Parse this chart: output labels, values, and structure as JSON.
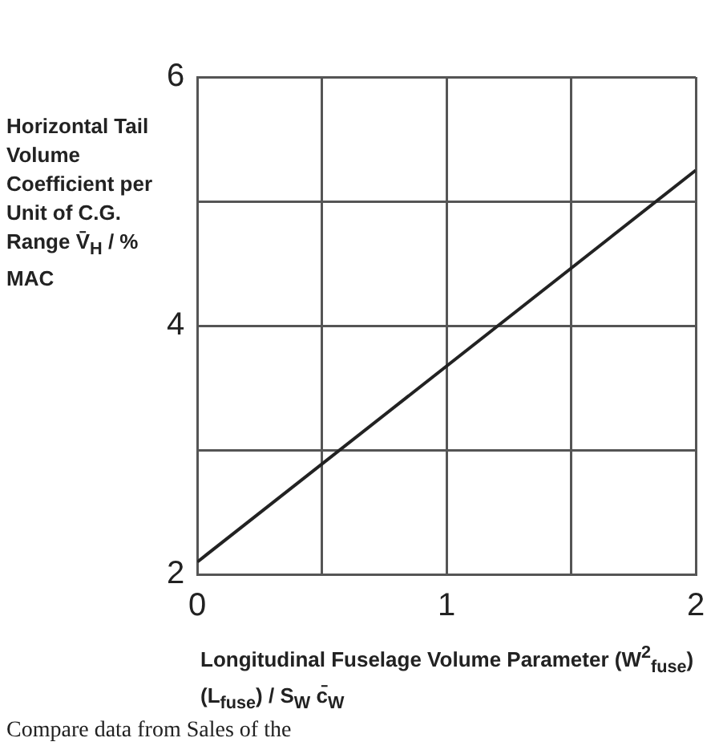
{
  "chart_data": {
    "type": "line",
    "xlabel": "Longitudinal Fuselage Volume Parameter (W$^{2}$$_{fuse}$)(L$_{fuse}$) / S$_{W}$ c̄$_{W}$",
    "ylabel": "Horizontal Tail Volume Coefficient per Unit of C.G. Range V̄$_{H}$ / % MAC",
    "x": [
      0,
      2
    ],
    "series": [
      {
        "color": "#222222",
        "values": [
          2.1,
          5.25
        ]
      }
    ],
    "xlim": [
      0,
      2
    ],
    "xticks": [
      0,
      {
        "value": 0.5,
        "label": null
      },
      1,
      {
        "value": 1.5,
        "label": null
      },
      2
    ],
    "ylim": [
      2,
      6
    ],
    "yticks": [
      2,
      {
        "value": 3,
        "label": null
      },
      4,
      {
        "value": 5,
        "label": null
      },
      6
    ],
    "grid": true,
    "legend": false,
    "marker": "none",
    "line_style": "solid",
    "annotations": [
      "Compare data from Sales of the"
    ]
  }
}
